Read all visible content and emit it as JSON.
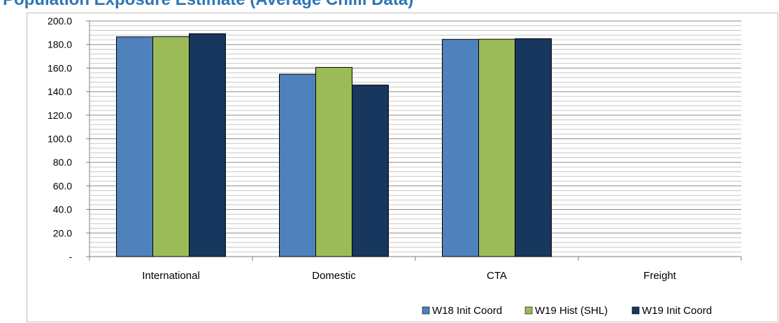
{
  "title": "Population Exposure Estimate (Average Chilli Data)",
  "chart_data": {
    "type": "bar",
    "categories": [
      "International",
      "Domestic",
      "CTA",
      "Freight"
    ],
    "series": [
      {
        "name": "W18 Init Coord",
        "color": "#4f81bd",
        "values": [
          186.5,
          154.8,
          184.4,
          null
        ]
      },
      {
        "name": "W19 Hist (SHL)",
        "color": "#9bbb59",
        "values": [
          186.7,
          160.6,
          184.5,
          null
        ]
      },
      {
        "name": "W19 Init Coord",
        "color": "#17375e",
        "values": [
          189.2,
          145.6,
          185.0,
          null
        ]
      }
    ],
    "ylim": [
      0,
      200
    ],
    "y_tick_labels": [
      "-",
      "20.0",
      "40.0",
      "60.0",
      "80.0",
      "100.0",
      "120.0",
      "140.0",
      "160.0",
      "180.0",
      "200.0"
    ],
    "grid": true,
    "legend_position": "bottom-right"
  }
}
